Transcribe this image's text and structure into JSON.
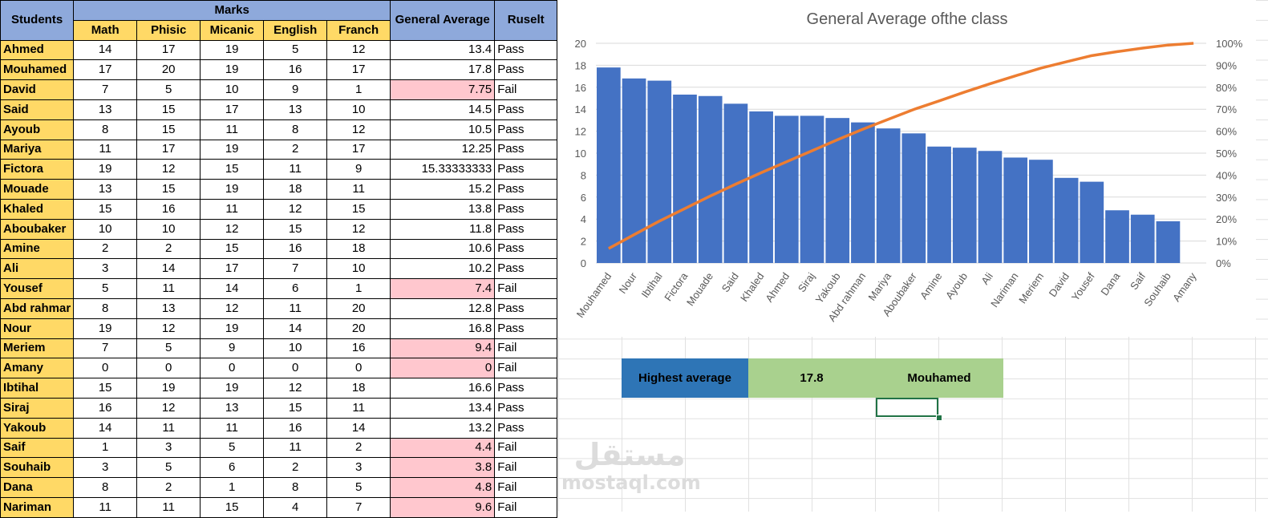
{
  "table": {
    "headers": {
      "students": "Students",
      "marks": "Marks",
      "subjects": [
        "Math",
        "Phisic",
        "Micanic",
        "English",
        "Franch"
      ],
      "general_average": "General Average",
      "result": "Ruselt"
    },
    "rows": [
      {
        "name": "Ahmed",
        "marks": [
          "14",
          "17",
          "19",
          "5",
          "12"
        ],
        "avg": "13.4",
        "result": "Pass"
      },
      {
        "name": "Mouhamed",
        "marks": [
          "17",
          "20",
          "19",
          "16",
          "17"
        ],
        "avg": "17.8",
        "result": "Pass"
      },
      {
        "name": "David",
        "marks": [
          "7",
          "5",
          "10",
          "9",
          "1"
        ],
        "avg": "7.75",
        "result": "Fail"
      },
      {
        "name": "Said",
        "marks": [
          "13",
          "15",
          "17",
          "13",
          "10"
        ],
        "avg": "14.5",
        "result": "Pass"
      },
      {
        "name": "Ayoub",
        "marks": [
          "8",
          "15",
          "11",
          "8",
          "12"
        ],
        "avg": "10.5",
        "result": "Pass"
      },
      {
        "name": "Mariya",
        "marks": [
          "11",
          "17",
          "19",
          "2",
          "17"
        ],
        "avg": "12.25",
        "result": "Pass"
      },
      {
        "name": "Fictora",
        "marks": [
          "19",
          "12",
          "15",
          "11",
          "9"
        ],
        "avg": "15.33333333",
        "result": "Pass"
      },
      {
        "name": "Mouade",
        "marks": [
          "13",
          "15",
          "19",
          "18",
          "11"
        ],
        "avg": "15.2",
        "result": "Pass"
      },
      {
        "name": "Khaled",
        "marks": [
          "15",
          "16",
          "11",
          "12",
          "15"
        ],
        "avg": "13.8",
        "result": "Pass"
      },
      {
        "name": "Aboubaker",
        "marks": [
          "10",
          "10",
          "12",
          "15",
          "12"
        ],
        "avg": "11.8",
        "result": "Pass"
      },
      {
        "name": "Amine",
        "marks": [
          "2",
          "2",
          "15",
          "16",
          "18"
        ],
        "avg": "10.6",
        "result": "Pass"
      },
      {
        "name": "Ali",
        "marks": [
          "3",
          "14",
          "17",
          "7",
          "10"
        ],
        "avg": "10.2",
        "result": "Pass"
      },
      {
        "name": "Yousef",
        "marks": [
          "5",
          "11",
          "14",
          "6",
          "1"
        ],
        "avg": "7.4",
        "result": "Fail"
      },
      {
        "name": "Abd rahmar",
        "marks": [
          "8",
          "13",
          "12",
          "11",
          "20"
        ],
        "avg": "12.8",
        "result": "Pass"
      },
      {
        "name": "Nour",
        "marks": [
          "19",
          "12",
          "19",
          "14",
          "20"
        ],
        "avg": "16.8",
        "result": "Pass"
      },
      {
        "name": "Meriem",
        "marks": [
          "7",
          "5",
          "9",
          "10",
          "16"
        ],
        "avg": "9.4",
        "result": "Fail"
      },
      {
        "name": "Amany",
        "marks": [
          "0",
          "0",
          "0",
          "0",
          "0"
        ],
        "avg": "0",
        "result": "Fail"
      },
      {
        "name": "Ibtihal",
        "marks": [
          "15",
          "19",
          "19",
          "12",
          "18"
        ],
        "avg": "16.6",
        "result": "Pass"
      },
      {
        "name": "Siraj",
        "marks": [
          "16",
          "12",
          "13",
          "15",
          "11"
        ],
        "avg": "13.4",
        "result": "Pass"
      },
      {
        "name": "Yakoub",
        "marks": [
          "14",
          "11",
          "11",
          "16",
          "14"
        ],
        "avg": "13.2",
        "result": "Pass"
      },
      {
        "name": "Saif",
        "marks": [
          "1",
          "3",
          "5",
          "11",
          "2"
        ],
        "avg": "4.4",
        "result": "Fail"
      },
      {
        "name": "Souhaib",
        "marks": [
          "3",
          "5",
          "6",
          "2",
          "3"
        ],
        "avg": "3.8",
        "result": "Fail"
      },
      {
        "name": "Dana",
        "marks": [
          "8",
          "2",
          "1",
          "8",
          "5"
        ],
        "avg": "4.8",
        "result": "Fail"
      },
      {
        "name": "Nariman",
        "marks": [
          "11",
          "11",
          "15",
          "4",
          "7"
        ],
        "avg": "9.6",
        "result": "Fail"
      }
    ]
  },
  "chart_data": {
    "type": "bar",
    "title": "General Average ofthe class",
    "xlabel": "",
    "ylabel": "",
    "categories": [
      "Mouhamed",
      "Nour",
      "Ibtihal",
      "Fictora",
      "Mouade",
      "Said",
      "Khaled",
      "Ahmed",
      "Siraj",
      "Yakoub",
      "Abd rahman",
      "Mariya",
      "Aboubaker",
      "Amine",
      "Ayoub",
      "Ali",
      "Nariman",
      "Meriem",
      "David",
      "Yousef",
      "Dana",
      "Saif",
      "Souhaib",
      "Amany"
    ],
    "series": [
      {
        "type": "bar",
        "values": [
          17.8,
          16.8,
          16.6,
          15.33,
          15.2,
          14.5,
          13.8,
          13.4,
          13.4,
          13.2,
          12.8,
          12.25,
          11.8,
          10.6,
          10.5,
          10.2,
          9.6,
          9.4,
          7.75,
          7.4,
          4.8,
          4.4,
          3.8,
          0
        ]
      },
      {
        "type": "line",
        "axis": "secondary",
        "values": [
          6.6,
          12.9,
          19.1,
          24.8,
          30.5,
          35.9,
          41.1,
          46.1,
          51.1,
          56.1,
          60.9,
          65.4,
          69.9,
          73.8,
          77.8,
          81.6,
          85.2,
          88.7,
          91.6,
          94.4,
          96.2,
          97.8,
          99.2,
          100
        ]
      }
    ],
    "ylim": [
      0,
      20
    ],
    "yticks": [
      "0",
      "2",
      "4",
      "6",
      "8",
      "10",
      "12",
      "14",
      "16",
      "18",
      "20"
    ],
    "y2lim": [
      0,
      100
    ],
    "y2ticks": [
      "0%",
      "10%",
      "20%",
      "30%",
      "40%",
      "50%",
      "60%",
      "70%",
      "80%",
      "90%",
      "100%"
    ],
    "grid": true,
    "legend": "none",
    "colors": {
      "bar": "#4472c4",
      "line": "#ed7d31"
    }
  },
  "summary": {
    "label": "Highest average",
    "value": "17.8",
    "name": "Mouhamed"
  },
  "watermark": {
    "logo": "مستقل",
    "site": "mostaql.com"
  },
  "colors": {
    "header_blue": "#8ea9db",
    "header_yellow": "#ffd966",
    "fail_fill": "#ffc7ce",
    "fail_text": "#9c0006",
    "label_blue": "#2e75b6",
    "value_green": "#a9d18e"
  }
}
